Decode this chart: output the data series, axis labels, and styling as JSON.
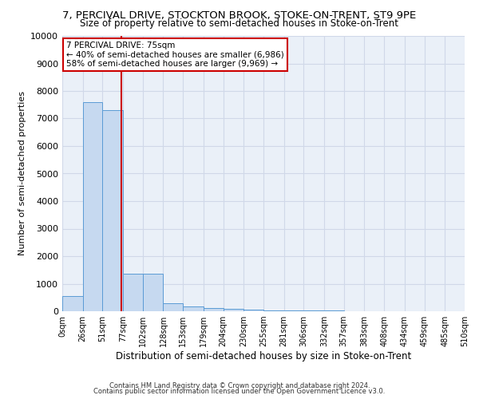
{
  "title": "7, PERCIVAL DRIVE, STOCKTON BROOK, STOKE-ON-TRENT, ST9 9PE",
  "subtitle": "Size of property relative to semi-detached houses in Stoke-on-Trent",
  "xlabel": "Distribution of semi-detached houses by size in Stoke-on-Trent",
  "ylabel": "Number of semi-detached properties",
  "footnote1": "Contains HM Land Registry data © Crown copyright and database right 2024.",
  "footnote2": "Contains public sector information licensed under the Open Government Licence v3.0.",
  "bin_edges": [
    0,
    26,
    51,
    77,
    102,
    128,
    153,
    179,
    204,
    230,
    255,
    281,
    306,
    332,
    357,
    383,
    408,
    434,
    459,
    485,
    510
  ],
  "bar_heights": [
    550,
    7600,
    7300,
    1350,
    1350,
    300,
    175,
    110,
    80,
    55,
    40,
    30,
    20,
    15,
    10,
    8,
    5,
    4,
    3,
    2
  ],
  "bar_color": "#c6d9f0",
  "bar_edge_color": "#5b9bd5",
  "property_size": 75,
  "property_line_color": "#cc0000",
  "annotation_line1": "7 PERCIVAL DRIVE: 75sqm",
  "annotation_line2": "← 40% of semi-detached houses are smaller (6,986)",
  "annotation_line3": "58% of semi-detached houses are larger (9,969) →",
  "annotation_box_color": "#ffffff",
  "annotation_box_edge": "#cc0000",
  "ylim": [
    0,
    10000
  ],
  "yticks": [
    0,
    1000,
    2000,
    3000,
    4000,
    5000,
    6000,
    7000,
    8000,
    9000,
    10000
  ],
  "grid_color": "#d0d8e8",
  "bg_color": "#eaf0f8",
  "title_fontsize": 9.5,
  "subtitle_fontsize": 8.5,
  "axis_label_fontsize": 8,
  "tick_fontsize": 7,
  "footnote_fontsize": 6
}
